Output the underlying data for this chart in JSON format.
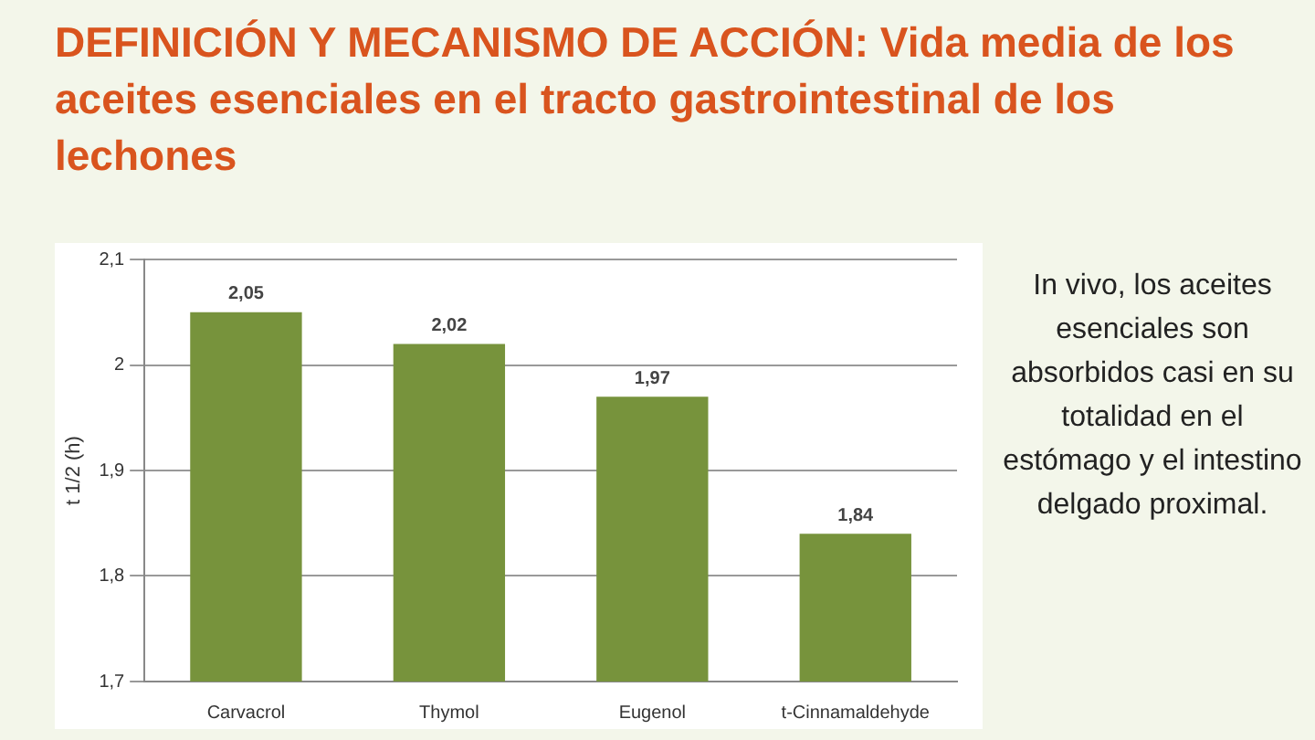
{
  "chart_data": {
    "type": "bar",
    "title": "DEFINICIÓN Y MECANISMO DE ACCIÓN: Vida media de los aceites esenciales en el tracto gastrointestinal de los lechones",
    "ylabel": "t 1/2 (h)",
    "categories": [
      "Carvacrol",
      "Thymol",
      "Eugenol",
      "t-Cinnamaldehyde"
    ],
    "values": [
      2.05,
      2.02,
      1.97,
      1.84
    ],
    "value_labels": [
      "2,05",
      "2,02",
      "1,97",
      "1,84"
    ],
    "color": "#77933c",
    "ylim": [
      1.7,
      2.1
    ],
    "yticks": [
      {
        "value": 1.7,
        "label": "1,7"
      },
      {
        "value": 1.8,
        "label": "1,8"
      },
      {
        "value": 1.9,
        "label": "1,9"
      },
      2,
      {
        "value": 2.1,
        "label": "2,1"
      }
    ],
    "grid": "y",
    "legend": false,
    "annotations": [
      "In vivo, los aceites esenciales son absorbidos casi en su totalidad en el estómago y el intestino delgado proximal."
    ]
  }
}
